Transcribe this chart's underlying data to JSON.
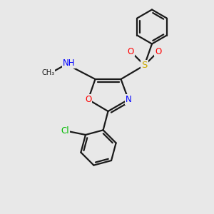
{
  "background_color": "#e8e8e8",
  "line_color": "#1a1a1a",
  "bond_width": 1.6,
  "atom_colors": {
    "N": "#0000ff",
    "O": "#ff0000",
    "S": "#ccaa00",
    "Cl": "#00bb00",
    "C": "#1a1a1a",
    "H": "#555555"
  },
  "font_size_atom": 8.5,
  "font_size_small": 8.0
}
